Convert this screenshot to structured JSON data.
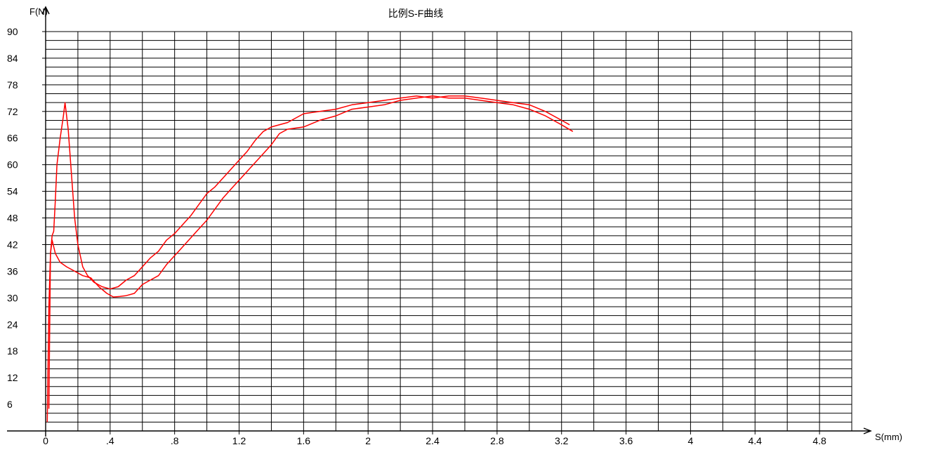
{
  "chart_data": {
    "type": "line",
    "title": "比例S-F曲线",
    "xlabel": "S(mm)",
    "ylabel": "F(N)",
    "xlim": [
      0,
      5.0
    ],
    "ylim": [
      0,
      90
    ],
    "x_ticks": [
      {
        "value": 0,
        "label": "0"
      },
      {
        "value": 0.4,
        "label": ".4"
      },
      {
        "value": 0.8,
        "label": ".8"
      },
      {
        "value": 1.2,
        "label": "1.2"
      },
      {
        "value": 1.6,
        "label": "1.6"
      },
      {
        "value": 2.0,
        "label": "2"
      },
      {
        "value": 2.4,
        "label": "2.4"
      },
      {
        "value": 2.8,
        "label": "2.8"
      },
      {
        "value": 3.2,
        "label": "3.2"
      },
      {
        "value": 3.6,
        "label": "3.6"
      },
      {
        "value": 4.0,
        "label": "4"
      },
      {
        "value": 4.4,
        "label": "4.4"
      },
      {
        "value": 4.8,
        "label": "4.8"
      }
    ],
    "y_ticks": [
      {
        "value": 6,
        "label": "6"
      },
      {
        "value": 12,
        "label": "12"
      },
      {
        "value": 18,
        "label": "18"
      },
      {
        "value": 24,
        "label": "24"
      },
      {
        "value": 30,
        "label": "30"
      },
      {
        "value": 36,
        "label": "36"
      },
      {
        "value": 42,
        "label": "42"
      },
      {
        "value": 48,
        "label": "48"
      },
      {
        "value": 54,
        "label": "54"
      },
      {
        "value": 60,
        "label": "60"
      },
      {
        "value": 66,
        "label": "66"
      },
      {
        "value": 72,
        "label": "72"
      },
      {
        "value": 78,
        "label": "78"
      },
      {
        "value": 84,
        "label": "84"
      },
      {
        "value": 90,
        "label": "90"
      }
    ],
    "grid": true,
    "grid_x_step": 0.2,
    "grid_y_step": 2,
    "series_color": "#ff0000",
    "series": [
      {
        "points": [
          [
            0.01,
            2
          ],
          [
            0.015,
            15
          ],
          [
            0.02,
            28
          ],
          [
            0.03,
            40
          ],
          [
            0.04,
            44
          ],
          [
            0.05,
            45
          ],
          [
            0.06,
            52
          ],
          [
            0.07,
            60
          ],
          [
            0.09,
            66
          ],
          [
            0.11,
            71
          ],
          [
            0.12,
            74
          ],
          [
            0.14,
            68
          ],
          [
            0.16,
            58
          ],
          [
            0.18,
            48
          ],
          [
            0.2,
            42
          ],
          [
            0.23,
            37
          ],
          [
            0.26,
            35
          ],
          [
            0.3,
            33.5
          ],
          [
            0.35,
            32.5
          ],
          [
            0.4,
            32
          ],
          [
            0.45,
            32.5
          ],
          [
            0.5,
            34
          ],
          [
            0.55,
            35
          ],
          [
            0.6,
            37
          ],
          [
            0.65,
            39
          ],
          [
            0.7,
            40.5
          ],
          [
            0.75,
            43
          ],
          [
            0.8,
            44.5
          ],
          [
            0.85,
            46.5
          ],
          [
            0.9,
            48.5
          ],
          [
            0.95,
            51
          ],
          [
            1.0,
            53.5
          ],
          [
            1.05,
            55
          ],
          [
            1.1,
            57
          ],
          [
            1.15,
            59
          ],
          [
            1.2,
            61
          ],
          [
            1.25,
            63
          ],
          [
            1.3,
            65.5
          ],
          [
            1.35,
            67.5
          ],
          [
            1.4,
            68.5
          ],
          [
            1.5,
            69.5
          ],
          [
            1.6,
            71.5
          ],
          [
            1.7,
            72
          ],
          [
            1.8,
            72.5
          ],
          [
            1.9,
            73.5
          ],
          [
            2.0,
            74
          ],
          [
            2.1,
            74.5
          ],
          [
            2.2,
            75
          ],
          [
            2.3,
            75.5
          ],
          [
            2.4,
            75
          ],
          [
            2.5,
            75.5
          ],
          [
            2.6,
            75.5
          ],
          [
            2.7,
            75
          ],
          [
            2.8,
            74.5
          ],
          [
            2.9,
            74
          ],
          [
            3.0,
            73.5
          ],
          [
            3.1,
            72
          ],
          [
            3.2,
            70
          ],
          [
            3.25,
            69
          ]
        ]
      },
      {
        "points": [
          [
            0.02,
            5
          ],
          [
            0.025,
            22
          ],
          [
            0.03,
            40
          ],
          [
            0.04,
            43
          ],
          [
            0.06,
            40
          ],
          [
            0.09,
            38
          ],
          [
            0.13,
            37
          ],
          [
            0.18,
            36
          ],
          [
            0.23,
            35
          ],
          [
            0.28,
            34.5
          ],
          [
            0.33,
            32.5
          ],
          [
            0.38,
            31
          ],
          [
            0.42,
            30.2
          ],
          [
            0.46,
            30.3
          ],
          [
            0.5,
            30.5
          ],
          [
            0.55,
            31
          ],
          [
            0.6,
            33
          ],
          [
            0.65,
            34
          ],
          [
            0.7,
            35
          ],
          [
            0.75,
            37.5
          ],
          [
            0.8,
            39.5
          ],
          [
            0.85,
            41.5
          ],
          [
            0.9,
            43.5
          ],
          [
            0.95,
            45.5
          ],
          [
            1.0,
            47.5
          ],
          [
            1.05,
            50
          ],
          [
            1.1,
            52.5
          ],
          [
            1.15,
            54.5
          ],
          [
            1.2,
            56.5
          ],
          [
            1.25,
            58.5
          ],
          [
            1.3,
            60.5
          ],
          [
            1.35,
            62.5
          ],
          [
            1.4,
            64.5
          ],
          [
            1.45,
            67
          ],
          [
            1.5,
            68
          ],
          [
            1.6,
            68.5
          ],
          [
            1.7,
            70
          ],
          [
            1.8,
            71
          ],
          [
            1.9,
            72.5
          ],
          [
            2.0,
            73
          ],
          [
            2.1,
            73.5
          ],
          [
            2.2,
            74.5
          ],
          [
            2.3,
            75
          ],
          [
            2.4,
            75.5
          ],
          [
            2.5,
            75
          ],
          [
            2.6,
            75
          ],
          [
            2.7,
            74.5
          ],
          [
            2.8,
            74
          ],
          [
            2.9,
            73.5
          ],
          [
            3.0,
            72.5
          ],
          [
            3.1,
            71
          ],
          [
            3.2,
            69
          ],
          [
            3.27,
            67.5
          ]
        ]
      }
    ]
  }
}
